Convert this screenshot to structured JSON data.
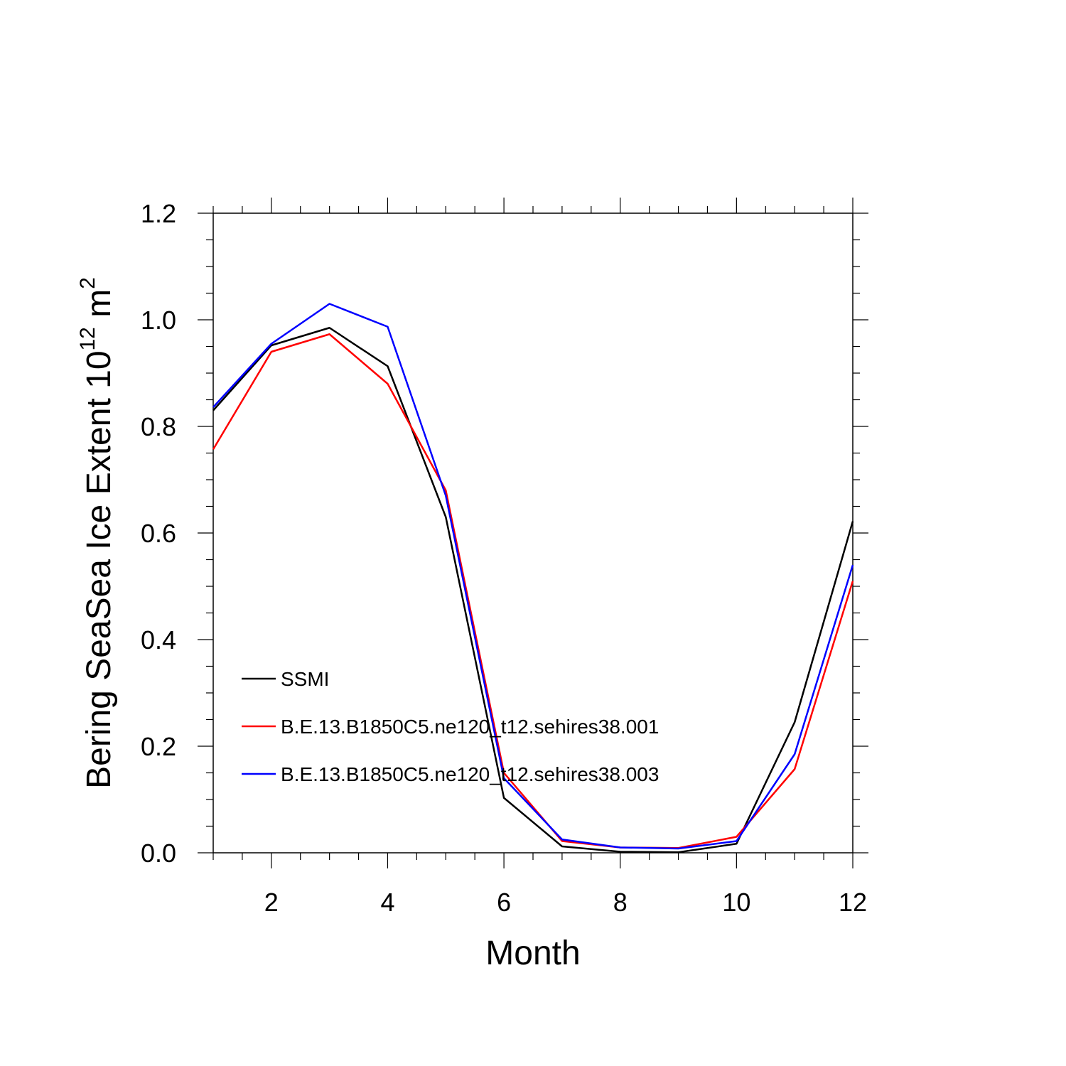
{
  "chart_data": {
    "type": "line",
    "title": "",
    "xlabel": "Month",
    "ylabel_text": "Bering SeaSea Ice Extent 10",
    "ylabel_exponent": "12",
    "ylabel_unit": " m",
    "ylabel_unit_exponent": "2",
    "xlim": [
      1,
      12
    ],
    "ylim": [
      0,
      1.2
    ],
    "x_ticks": [
      "2",
      "4",
      "6",
      "8",
      "10",
      "12"
    ],
    "y_ticks": [
      "0.0",
      "0.2",
      "0.4",
      "0.6",
      "0.8",
      "1.0",
      "1.2"
    ],
    "x": [
      1,
      2,
      3,
      4,
      5,
      6,
      7,
      8,
      9,
      10,
      11,
      12
    ],
    "series": [
      {
        "name": "SSMI",
        "color": "#000000",
        "values": [
          0.83,
          0.952,
          0.985,
          0.913,
          0.63,
          0.103,
          0.012,
          0.002,
          0.001,
          0.017,
          0.245,
          0.622
        ]
      },
      {
        "name": "B.E.13.B1850C5.ne120_t12.sehires38.001",
        "color": "#ff0000",
        "values": [
          0.757,
          0.94,
          0.973,
          0.88,
          0.68,
          0.15,
          0.022,
          0.01,
          0.009,
          0.03,
          0.157,
          0.51
        ]
      },
      {
        "name": "B.E.13.B1850C5.ne120_t12.sehires38.003",
        "color": "#0000ff",
        "values": [
          0.836,
          0.955,
          1.03,
          0.987,
          0.67,
          0.14,
          0.025,
          0.01,
          0.008,
          0.022,
          0.185,
          0.54
        ]
      }
    ],
    "grid": false,
    "legend_position": "lower-left inside"
  }
}
